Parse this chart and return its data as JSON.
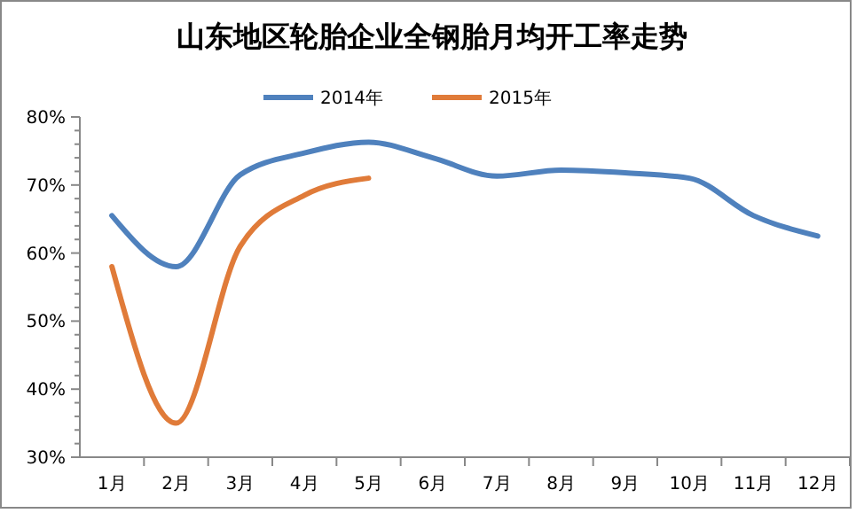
{
  "chart_data": {
    "type": "line",
    "title": "山东地区轮胎企业全钢胎月均开工率走势",
    "categories": [
      "1月",
      "2月",
      "3月",
      "4月",
      "5月",
      "6月",
      "7月",
      "8月",
      "9月",
      "10月",
      "11月",
      "12月"
    ],
    "series": [
      {
        "name": "2014年",
        "color": "#4f81bd",
        "values": [
          65.5,
          58,
          71.5,
          74.7,
          76.3,
          74,
          71.3,
          72.2,
          71.8,
          71,
          65.5,
          62.5
        ]
      },
      {
        "name": "2015年",
        "color": "#e07b39",
        "values": [
          58,
          35,
          61,
          68.5,
          71,
          null,
          null,
          null,
          null,
          null,
          null,
          null
        ]
      }
    ],
    "ylim": [
      30,
      80
    ],
    "yticks": [
      {
        "value": 30,
        "label": "30%"
      },
      {
        "value": 32,
        "label": null
      },
      {
        "value": 34,
        "label": null
      },
      {
        "value": 36,
        "label": null
      },
      {
        "value": 38,
        "label": null
      },
      {
        "value": 40,
        "label": "40%"
      },
      {
        "value": 42,
        "label": null
      },
      {
        "value": 44,
        "label": null
      },
      {
        "value": 46,
        "label": null
      },
      {
        "value": 48,
        "label": null
      },
      {
        "value": 50,
        "label": "50%"
      },
      {
        "value": 52,
        "label": null
      },
      {
        "value": 54,
        "label": null
      },
      {
        "value": 56,
        "label": null
      },
      {
        "value": 58,
        "label": null
      },
      {
        "value": 60,
        "label": "60%"
      },
      {
        "value": 62,
        "label": null
      },
      {
        "value": 64,
        "label": null
      },
      {
        "value": 66,
        "label": null
      },
      {
        "value": 68,
        "label": null
      },
      {
        "value": 70,
        "label": "70%"
      },
      {
        "value": 72,
        "label": null
      },
      {
        "value": 74,
        "label": null
      },
      {
        "value": 76,
        "label": null
      },
      {
        "value": 78,
        "label": null
      },
      {
        "value": 80,
        "label": "80%"
      }
    ],
    "legend": "top",
    "grid": false,
    "marker": "none",
    "line_style": "solid"
  }
}
